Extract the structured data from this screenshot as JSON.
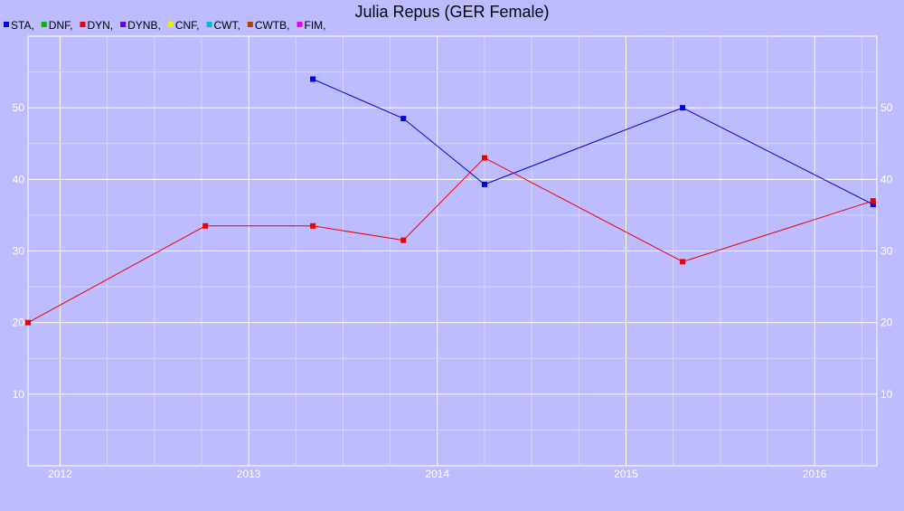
{
  "chart_data": {
    "type": "line",
    "title": "Julia Repus (GER Female)",
    "legend": [
      {
        "label": "STA,",
        "color": "#0000dd"
      },
      {
        "label": "DNF,",
        "color": "#00bb00"
      },
      {
        "label": "DYN,",
        "color": "#ee0000"
      },
      {
        "label": "DYNB,",
        "color": "#6600dd"
      },
      {
        "label": "CNF,",
        "color": "#eeee00"
      },
      {
        "label": "CWT,",
        "color": "#00bbdd"
      },
      {
        "label": "CWTB,",
        "color": "#aa4400"
      },
      {
        "label": "FIM,",
        "color": "#ee00ee"
      }
    ],
    "legend_position": "top-left",
    "xlim": [
      2011.83,
      2016.33
    ],
    "ylim": [
      0,
      60
    ],
    "x_ticks": [
      "2012",
      "2013",
      "2014",
      "2015",
      "2016"
    ],
    "x_tick_values": [
      2012,
      2013,
      2014,
      2015,
      2016
    ],
    "y_ticks": [
      "10",
      "20",
      "30",
      "40",
      "50"
    ],
    "y_tick_values": [
      10,
      20,
      30,
      40,
      50
    ],
    "grid": true,
    "series": [
      {
        "name": "STA",
        "color": "#0000dd",
        "x": [
          2013.34,
          2013.82,
          2014.25,
          2015.3,
          2016.31
        ],
        "y": [
          54.0,
          48.5,
          39.3,
          50.0,
          36.5
        ]
      },
      {
        "name": "DYN",
        "color": "#ee0000",
        "x": [
          2011.83,
          2012.77,
          2013.34,
          2013.82,
          2014.25,
          2015.3,
          2016.31
        ],
        "y": [
          20.0,
          33.5,
          33.5,
          31.5,
          43.0,
          28.5,
          37.0
        ]
      }
    ]
  }
}
